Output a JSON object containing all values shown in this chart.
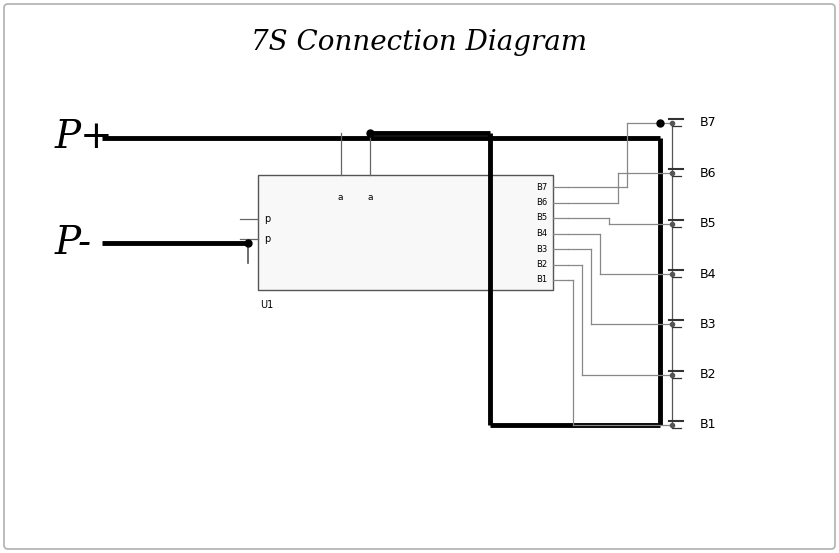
{
  "title": "7S Connection Diagram",
  "title_fontsize": 20,
  "bg_color": "#ffffff",
  "border_color": "#b0b0b0",
  "line_color_thick": "#000000",
  "line_color_thin": "#888888",
  "text_color": "#000000",
  "fig_width": 8.39,
  "fig_height": 5.53,
  "battery_labels": [
    "B7",
    "B6",
    "B5",
    "B4",
    "B3",
    "B2",
    "B1"
  ],
  "ic_label": "U1",
  "ic_pins_left": [
    "p",
    "p"
  ],
  "ic_pins_right": [
    "B7",
    "B6",
    "B5",
    "B4",
    "B3",
    "B2",
    "B1"
  ]
}
